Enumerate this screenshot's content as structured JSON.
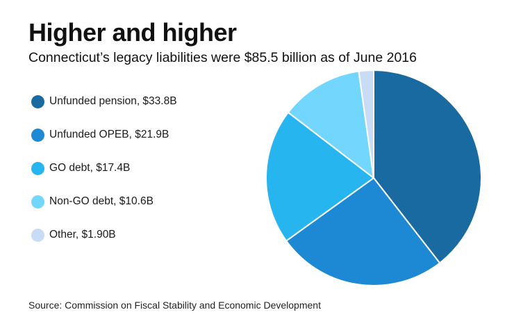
{
  "header": {
    "title": "Higher and higher",
    "subtitle": "Connecticut’s legacy liabilities were $85.5 billion as of June 2016"
  },
  "footer": {
    "source": "Source: Commission on Fiscal Stability and Economic Development"
  },
  "chart_data": {
    "type": "pie",
    "title": "Higher and higher",
    "subtitle": "Connecticut’s legacy liabilities were $85.5 billion as of June 2016",
    "unit": "$B",
    "total": 85.5,
    "start_angle_deg": 0,
    "direction": "clockwise",
    "legend_position": "left",
    "slices": [
      {
        "name": "Unfunded pension",
        "value": 33.8,
        "label": "Unfunded pension, $33.8B",
        "color": "#1a6aa2"
      },
      {
        "name": "Unfunded OPEB",
        "value": 21.9,
        "label": "Unfunded OPEB, $21.9B",
        "color": "#1d88d3"
      },
      {
        "name": "GO debt",
        "value": 17.4,
        "label": "GO debt, $17.4B",
        "color": "#27b5ef"
      },
      {
        "name": "Non-GO debt",
        "value": 10.6,
        "label": "Non-GO debt, $10.6B",
        "color": "#72d6fd"
      },
      {
        "name": "Other",
        "value": 1.9,
        "label": "Other, $1.90B",
        "color": "#c8dcf6"
      }
    ]
  }
}
